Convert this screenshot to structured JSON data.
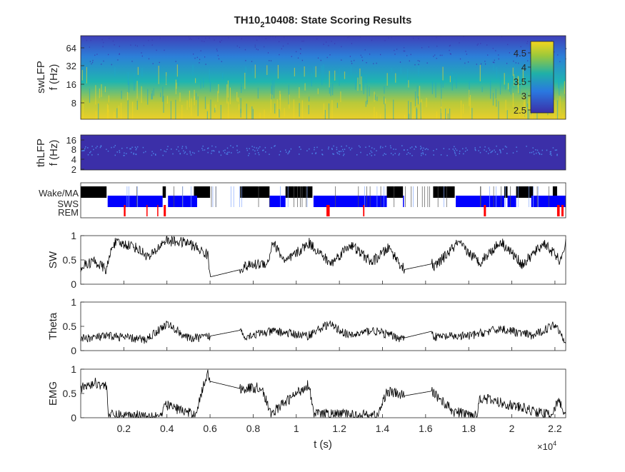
{
  "title": {
    "main": "TH10",
    "subscript": "2",
    "rest": "10408: State Scoring Results"
  },
  "colors": {
    "wake": "#000000",
    "sws": "#0000ff",
    "rem": "#ff0000",
    "trace": "#000000",
    "spectrogram_low": "#3b2fa8",
    "spectrogram_mid": "#1fa8c9",
    "spectrogram_high": "#f4d51f"
  },
  "chart_data": [
    {
      "type": "heatmap",
      "name": "swLFP",
      "ylabel": [
        "swLFP",
        "f (Hz)"
      ],
      "yticks": [
        "64",
        "32",
        "16",
        "8"
      ],
      "colorbar": {
        "ticks": [
          "4.5",
          "4",
          "3.5",
          "3",
          "2.5"
        ],
        "range": [
          2.4,
          4.9
        ]
      }
    },
    {
      "type": "heatmap",
      "name": "thLFP",
      "ylabel": [
        "thLFP",
        "f (Hz)"
      ],
      "yticks": [
        "16",
        "8",
        "4",
        "2"
      ]
    },
    {
      "type": "bar",
      "name": "states",
      "yticks": [
        "Wake/MA",
        "SWS",
        "REM"
      ],
      "wake": [
        [
          0,
          1200
        ],
        [
          3800,
          3950
        ],
        [
          5250,
          6000
        ],
        [
          7400,
          8750
        ],
        [
          9500,
          10750
        ],
        [
          14200,
          14950
        ],
        [
          16350,
          17350
        ],
        [
          19650,
          19800
        ],
        [
          20200,
          21000
        ],
        [
          21900,
          22100
        ]
      ],
      "sws": [
        [
          1250,
          3800
        ],
        [
          4050,
          5400
        ],
        [
          8750,
          9500
        ],
        [
          10800,
          14200
        ],
        [
          14950,
          15000
        ],
        [
          17400,
          19650
        ],
        [
          19800,
          20200
        ],
        [
          20900,
          21200
        ],
        [
          21200,
          22500
        ]
      ],
      "rem": [
        [
          2000,
          2080
        ],
        [
          3050,
          3100
        ],
        [
          3550,
          3600
        ],
        [
          3850,
          3950
        ],
        [
          11400,
          11550
        ],
        [
          13100,
          13160
        ],
        [
          18700,
          18800
        ],
        [
          22100,
          22220
        ],
        [
          22300,
          22400
        ]
      ]
    },
    {
      "type": "line",
      "name": "SW",
      "ylabel": "SW",
      "ylim": [
        0,
        1
      ],
      "yticks": [
        "1",
        "0.5",
        "0"
      ],
      "x": [
        0,
        600,
        1200,
        1500,
        2400,
        3200,
        3900,
        5000,
        5900,
        6000,
        7400,
        7500,
        8700,
        8900,
        9500,
        10600,
        11600,
        12500,
        13500,
        14300,
        15000,
        16300,
        16400,
        17500,
        18500,
        19500,
        20500,
        21500,
        22300,
        22500
      ],
      "values": [
        0.35,
        0.48,
        0.3,
        0.85,
        0.8,
        0.55,
        0.9,
        0.85,
        0.6,
        0.15,
        0.3,
        0.35,
        0.45,
        0.88,
        0.45,
        0.85,
        0.42,
        0.82,
        0.45,
        0.75,
        0.3,
        0.42,
        0.35,
        0.85,
        0.45,
        0.88,
        0.4,
        0.85,
        0.45,
        0.9
      ]
    },
    {
      "type": "line",
      "name": "Theta",
      "ylabel": "Theta",
      "ylim": [
        0,
        1
      ],
      "yticks": [
        "1",
        "0.5",
        "0"
      ],
      "x": [
        0,
        1500,
        3000,
        4000,
        5000,
        5900,
        6000,
        7400,
        7600,
        9000,
        10500,
        11500,
        12500,
        13500,
        14900,
        16300,
        16400,
        18000,
        19500,
        21000,
        22000,
        22500
      ],
      "values": [
        0.25,
        0.3,
        0.22,
        0.55,
        0.25,
        0.28,
        0.3,
        0.42,
        0.3,
        0.4,
        0.3,
        0.55,
        0.3,
        0.42,
        0.25,
        0.4,
        0.28,
        0.3,
        0.45,
        0.3,
        0.55,
        0.2
      ]
    },
    {
      "type": "line",
      "name": "EMG",
      "ylabel": "EMG",
      "ylim": [
        0,
        1
      ],
      "yticks": [
        "1",
        "0.5",
        "0"
      ],
      "xlabel": "t (s)",
      "xticks": [
        "0.2",
        "0.4",
        "0.6",
        "0.8",
        "1",
        "1.2",
        "1.4",
        "1.6",
        "1.8",
        "2",
        "2.2"
      ],
      "xexponent": {
        "base": "×10",
        "power": "4"
      },
      "x": [
        0,
        700,
        1200,
        1300,
        3800,
        3900,
        5300,
        5900,
        6000,
        7400,
        8400,
        8800,
        10600,
        10800,
        13800,
        14200,
        15000,
        16300,
        16400,
        17300,
        18400,
        18500,
        21800,
        22200,
        22500
      ],
      "values": [
        0.6,
        0.72,
        0.65,
        0.05,
        0.05,
        0.28,
        0.05,
        0.95,
        0.75,
        0.6,
        0.62,
        0.08,
        0.7,
        0.08,
        0.05,
        0.55,
        0.45,
        0.55,
        0.5,
        0.12,
        0.05,
        0.42,
        0.05,
        0.35,
        0.03
      ]
    }
  ]
}
